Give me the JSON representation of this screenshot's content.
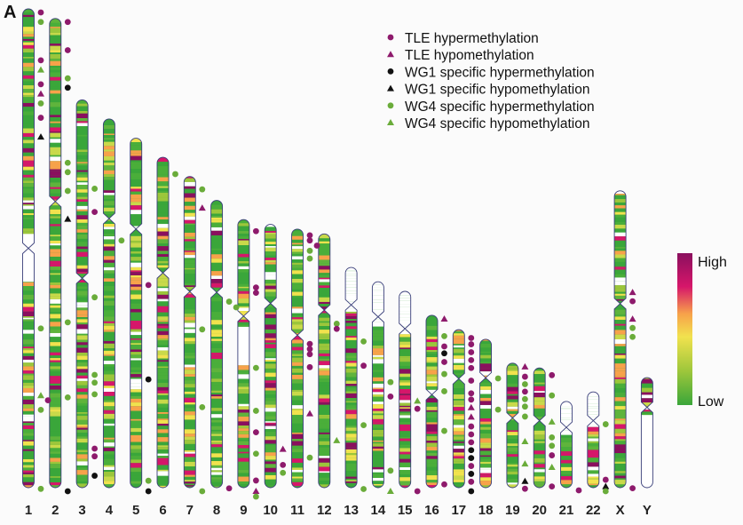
{
  "panel_label": "A",
  "legend": [
    {
      "key": "tle_hyper",
      "label": "TLE hypermethylation",
      "shape": "circle",
      "color": "#8e1a6c"
    },
    {
      "key": "tle_hypo",
      "label": "TLE hypomethylation",
      "shape": "triangle",
      "color": "#8e1a6c"
    },
    {
      "key": "wg1_hyper",
      "label": "WG1 specific hypermethylation",
      "shape": "circle",
      "color": "#111111"
    },
    {
      "key": "wg1_hypo",
      "label": "WG1 specific hypomethylation",
      "shape": "triangle",
      "color": "#111111"
    },
    {
      "key": "wg4_hyper",
      "label": "WG4 specific hypermethylation",
      "shape": "circle",
      "color": "#6aac3a"
    },
    {
      "key": "wg4_hypo",
      "label": "WG4 specific hypomethylation",
      "shape": "triangle",
      "color": "#6aac3a"
    }
  ],
  "color_scale": {
    "high_label": "High",
    "low_label": "Low",
    "stops": [
      "#8a0f5e",
      "#d6166a",
      "#f7a24a",
      "#f1e24e",
      "#9cc63b",
      "#3aa63a"
    ]
  },
  "chart_data": {
    "type": "ideogram",
    "title": "",
    "chromosomes": [
      {
        "label": "1",
        "length": 1.0,
        "centromere": 0.5
      },
      {
        "label": "2",
        "length": 0.98,
        "centromere": 0.39
      },
      {
        "label": "3",
        "length": 0.81,
        "centromere": 0.46
      },
      {
        "label": "4",
        "length": 0.77,
        "centromere": 0.27
      },
      {
        "label": "5",
        "length": 0.73,
        "centromere": 0.26
      },
      {
        "label": "6",
        "length": 0.69,
        "centromere": 0.35
      },
      {
        "label": "7",
        "length": 0.65,
        "centromere": 0.37
      },
      {
        "label": "8",
        "length": 0.6,
        "centromere": 0.32
      },
      {
        "label": "9",
        "length": 0.56,
        "centromere": 0.36
      },
      {
        "label": "10",
        "length": 0.55,
        "centromere": 0.3
      },
      {
        "label": "11",
        "length": 0.54,
        "centromere": 0.41
      },
      {
        "label": "12",
        "length": 0.53,
        "centromere": 0.3
      },
      {
        "label": "13",
        "length": 0.46,
        "centromere": 0.17
      },
      {
        "label": "14",
        "length": 0.43,
        "centromere": 0.17
      },
      {
        "label": "15",
        "length": 0.41,
        "centromere": 0.19
      },
      {
        "label": "16",
        "length": 0.36,
        "centromere": 0.46
      },
      {
        "label": "17",
        "length": 0.33,
        "centromere": 0.31
      },
      {
        "label": "18",
        "length": 0.31,
        "centromere": 0.26
      },
      {
        "label": "19",
        "length": 0.26,
        "centromere": 0.44
      },
      {
        "label": "20",
        "length": 0.25,
        "centromere": 0.44
      },
      {
        "label": "21",
        "length": 0.18,
        "centromere": 0.3
      },
      {
        "label": "22",
        "length": 0.2,
        "centromere": 0.3
      },
      {
        "label": "X",
        "length": 0.62,
        "centromere": 0.38
      },
      {
        "label": "Y",
        "length": 0.23,
        "centromere": 0.27
      }
    ],
    "marks": [
      {
        "chr": "1",
        "type": "tle_hyper",
        "pos": 0.0
      },
      {
        "chr": "1",
        "type": "wg4_hyper",
        "pos": 0.02
      },
      {
        "chr": "1",
        "type": "tle_hyper",
        "pos": 0.1
      },
      {
        "chr": "1",
        "type": "wg4_hypo",
        "pos": 0.12
      },
      {
        "chr": "1",
        "type": "tle_hyper",
        "pos": 0.15
      },
      {
        "chr": "1",
        "type": "tle_hypo",
        "pos": 0.17
      },
      {
        "chr": "1",
        "type": "wg4_hyper",
        "pos": 0.19
      },
      {
        "chr": "1",
        "type": "tle_hyper",
        "pos": 0.22
      },
      {
        "chr": "1",
        "type": "wg1_hypo",
        "pos": 0.26
      },
      {
        "chr": "1",
        "type": "wg4_hyper",
        "pos": 0.66
      },
      {
        "chr": "1",
        "type": "wg4_hypo",
        "pos": 0.8
      },
      {
        "chr": "1",
        "type": "tle_hyper",
        "pos": 0.81
      },
      {
        "chr": "1",
        "type": "wg4_hyper",
        "pos": 0.83
      },
      {
        "chr": "1",
        "type": "wg4_hyper",
        "pos": 0.995
      },
      {
        "chr": "2",
        "type": "tle_hyper",
        "pos": 0.0
      },
      {
        "chr": "2",
        "type": "tle_hyper",
        "pos": 0.06
      },
      {
        "chr": "2",
        "type": "wg4_hyper",
        "pos": 0.12
      },
      {
        "chr": "2",
        "type": "wg1_hyper",
        "pos": 0.14
      },
      {
        "chr": "2",
        "type": "wg4_hyper",
        "pos": 0.3
      },
      {
        "chr": "2",
        "type": "wg4_hyper",
        "pos": 0.32
      },
      {
        "chr": "2",
        "type": "wg4_hyper",
        "pos": 0.36
      },
      {
        "chr": "2",
        "type": "wg1_hypo",
        "pos": 0.42
      },
      {
        "chr": "2",
        "type": "wg4_hyper",
        "pos": 0.64
      },
      {
        "chr": "2",
        "type": "wg4_hyper",
        "pos": 0.8
      },
      {
        "chr": "2",
        "type": "wg1_hyper",
        "pos": 1.0
      },
      {
        "chr": "3",
        "type": "wg4_hyper",
        "pos": 0.22
      },
      {
        "chr": "3",
        "type": "tle_hyper",
        "pos": 0.28
      },
      {
        "chr": "3",
        "type": "wg4_hyper",
        "pos": 0.5
      },
      {
        "chr": "3",
        "type": "wg4_hyper",
        "pos": 0.7
      },
      {
        "chr": "3",
        "type": "wg4_hyper",
        "pos": 0.72
      },
      {
        "chr": "3",
        "type": "wg4_hyper",
        "pos": 0.75
      },
      {
        "chr": "3",
        "type": "tle_hyper",
        "pos": 0.89
      },
      {
        "chr": "3",
        "type": "tle_hyper",
        "pos": 0.91
      },
      {
        "chr": "3",
        "type": "wg1_hyper",
        "pos": 0.96
      },
      {
        "chr": "4",
        "type": "wg4_hyper",
        "pos": 0.32
      },
      {
        "chr": "5",
        "type": "tle_hyper",
        "pos": 0.41
      },
      {
        "chr": "5",
        "type": "wg1_hyper",
        "pos": 0.68
      },
      {
        "chr": "5",
        "type": "wg4_hyper",
        "pos": 0.97
      },
      {
        "chr": "5",
        "type": "wg1_hyper",
        "pos": 1.0
      },
      {
        "chr": "6",
        "type": "wg4_hyper",
        "pos": 0.04
      },
      {
        "chr": "7",
        "type": "wg4_hyper",
        "pos": 0.03
      },
      {
        "chr": "7",
        "type": "tle_hypo",
        "pos": 0.09
      },
      {
        "chr": "7",
        "type": "wg4_hyper",
        "pos": 0.48
      },
      {
        "chr": "7",
        "type": "wg4_hyper",
        "pos": 0.73
      },
      {
        "chr": "7",
        "type": "wg4_hyper",
        "pos": 1.0
      },
      {
        "chr": "8",
        "type": "wg4_hyper",
        "pos": 0.34
      },
      {
        "chr": "8",
        "type": "wg4_hyper",
        "pos": 0.36
      },
      {
        "chr": "8",
        "type": "tle_hyper",
        "pos": 0.99
      },
      {
        "chr": "9",
        "type": "tle_hyper",
        "pos": 0.03
      },
      {
        "chr": "9",
        "type": "tle_hyper",
        "pos": 0.24
      },
      {
        "chr": "9",
        "type": "tle_hyper",
        "pos": 0.26
      },
      {
        "chr": "9",
        "type": "wg4_hyper",
        "pos": 0.54
      },
      {
        "chr": "9",
        "type": "wg4_hyper",
        "pos": 0.7
      },
      {
        "chr": "9",
        "type": "tle_hyper",
        "pos": 0.78
      },
      {
        "chr": "9",
        "type": "wg4_hyper",
        "pos": 0.86
      },
      {
        "chr": "9",
        "type": "tle_hyper",
        "pos": 0.96
      },
      {
        "chr": "9",
        "type": "tle_hypo",
        "pos": 1.0
      },
      {
        "chr": "9",
        "type": "wg4_hyper",
        "pos": 1.02
      },
      {
        "chr": "10",
        "type": "tle_hypo",
        "pos": 0.84
      },
      {
        "chr": "10",
        "type": "tle_hyper",
        "pos": 0.9
      },
      {
        "chr": "10",
        "type": "wg4_hyper",
        "pos": 0.93
      },
      {
        "chr": "11",
        "type": "tle_hyper",
        "pos": 0.01
      },
      {
        "chr": "11",
        "type": "tle_hyper",
        "pos": 0.03
      },
      {
        "chr": "11",
        "type": "tle_hyper",
        "pos": 0.05
      },
      {
        "chr": "11",
        "type": "wg4_hyper",
        "pos": 0.07
      },
      {
        "chr": "11",
        "type": "wg4_hyper",
        "pos": 0.1
      },
      {
        "chr": "11",
        "type": "tle_hyper",
        "pos": 0.43
      },
      {
        "chr": "11",
        "type": "tle_hyper",
        "pos": 0.45
      },
      {
        "chr": "11",
        "type": "tle_hyper",
        "pos": 0.47
      },
      {
        "chr": "11",
        "type": "tle_hyper",
        "pos": 0.52
      },
      {
        "chr": "11",
        "type": "tle_hypo",
        "pos": 0.7
      },
      {
        "chr": "11",
        "type": "wg4_hyper",
        "pos": 0.87
      },
      {
        "chr": "12",
        "type": "wg4_hypo",
        "pos": 0.8
      },
      {
        "chr": "12",
        "type": "wg4_hyper",
        "pos": 0.34
      },
      {
        "chr": "12",
        "type": "tle_hyper",
        "pos": 0.36
      },
      {
        "chr": "13",
        "type": "wg4_hyper",
        "pos": 0.32
      },
      {
        "chr": "13",
        "type": "tle_hyper",
        "pos": 0.43
      },
      {
        "chr": "13",
        "type": "wg4_hyper",
        "pos": 0.7
      },
      {
        "chr": "13",
        "type": "wg4_hyper",
        "pos": 0.99
      },
      {
        "chr": "14",
        "type": "wg4_hyper",
        "pos": 0.47
      },
      {
        "chr": "14",
        "type": "tle_hyper",
        "pos": 0.54
      },
      {
        "chr": "14",
        "type": "wg4_hyper",
        "pos": 0.9
      },
      {
        "chr": "14",
        "type": "wg4_hypo",
        "pos": 1.0
      },
      {
        "chr": "15",
        "type": "wg4_hypo",
        "pos": 0.54
      },
      {
        "chr": "15",
        "type": "tle_hyper",
        "pos": 0.58
      },
      {
        "chr": "15",
        "type": "tle_hyper",
        "pos": 1.0
      },
      {
        "chr": "16",
        "type": "tle_hypo",
        "pos": 0.0
      },
      {
        "chr": "16",
        "type": "wg4_hyper",
        "pos": 0.1
      },
      {
        "chr": "16",
        "type": "tle_hyper",
        "pos": 0.16
      },
      {
        "chr": "16",
        "type": "wg1_hyper",
        "pos": 0.2
      },
      {
        "chr": "16",
        "type": "tle_hyper",
        "pos": 0.25
      },
      {
        "chr": "16",
        "type": "wg4_hyper",
        "pos": 0.32
      },
      {
        "chr": "16",
        "type": "wg4_hyper",
        "pos": 0.42
      },
      {
        "chr": "16",
        "type": "wg4_hyper",
        "pos": 0.65
      },
      {
        "chr": "16",
        "type": "tle_hyper",
        "pos": 0.96
      },
      {
        "chr": "17",
        "type": "tle_hyper",
        "pos": 0.03
      },
      {
        "chr": "17",
        "type": "tle_hyper",
        "pos": 0.07
      },
      {
        "chr": "17",
        "type": "tle_hyper",
        "pos": 0.12
      },
      {
        "chr": "17",
        "type": "tle_hyper",
        "pos": 0.17
      },
      {
        "chr": "17",
        "type": "tle_hyper",
        "pos": 0.22
      },
      {
        "chr": "17",
        "type": "tle_hyper",
        "pos": 0.3
      },
      {
        "chr": "17",
        "type": "tle_hyper",
        "pos": 0.38
      },
      {
        "chr": "17",
        "type": "tle_hyper",
        "pos": 0.42
      },
      {
        "chr": "17",
        "type": "tle_hypo",
        "pos": 0.47
      },
      {
        "chr": "17",
        "type": "tle_hypo",
        "pos": 0.53
      },
      {
        "chr": "17",
        "type": "tle_hyper",
        "pos": 0.59
      },
      {
        "chr": "17",
        "type": "tle_hyper",
        "pos": 0.64
      },
      {
        "chr": "17",
        "type": "tle_hyper",
        "pos": 0.69
      },
      {
        "chr": "17",
        "type": "wg1_hyper",
        "pos": 0.74
      },
      {
        "chr": "17",
        "type": "wg1_hyper",
        "pos": 0.79
      },
      {
        "chr": "17",
        "type": "tle_hyper",
        "pos": 0.84
      },
      {
        "chr": "17",
        "type": "wg1_hyper",
        "pos": 0.89
      },
      {
        "chr": "17",
        "type": "tle_hyper",
        "pos": 0.94
      },
      {
        "chr": "17",
        "type": "wg1_hyper",
        "pos": 1.0
      },
      {
        "chr": "18",
        "type": "wg4_hyper",
        "pos": 0.24
      },
      {
        "chr": "18",
        "type": "wg4_hyper",
        "pos": 0.45
      },
      {
        "chr": "19",
        "type": "tle_hypo",
        "pos": 0.0
      },
      {
        "chr": "19",
        "type": "tle_hyper",
        "pos": 0.08
      },
      {
        "chr": "19",
        "type": "wg4_hyper",
        "pos": 0.14
      },
      {
        "chr": "19",
        "type": "tle_hyper",
        "pos": 0.2
      },
      {
        "chr": "19",
        "type": "wg4_hyper",
        "pos": 0.26
      },
      {
        "chr": "19",
        "type": "wg4_hyper",
        "pos": 0.32
      },
      {
        "chr": "19",
        "type": "wg4_hyper",
        "pos": 0.4
      },
      {
        "chr": "19",
        "type": "wg4_hypo",
        "pos": 0.6
      },
      {
        "chr": "19",
        "type": "wg4_hypo",
        "pos": 0.78
      },
      {
        "chr": "19",
        "type": "wg1_hypo",
        "pos": 0.92
      },
      {
        "chr": "19",
        "type": "tle_hyper",
        "pos": 0.98
      },
      {
        "chr": "20",
        "type": "tle_hyper",
        "pos": 0.03
      },
      {
        "chr": "20",
        "type": "wg4_hyper",
        "pos": 0.2
      },
      {
        "chr": "20",
        "type": "wg4_hypo",
        "pos": 0.42
      },
      {
        "chr": "20",
        "type": "wg4_hyper",
        "pos": 0.55
      },
      {
        "chr": "20",
        "type": "wg4_hyper",
        "pos": 0.62
      },
      {
        "chr": "20",
        "type": "tle_hyper",
        "pos": 0.7
      },
      {
        "chr": "20",
        "type": "wg4_hypo",
        "pos": 0.8
      },
      {
        "chr": "20",
        "type": "tle_hyper",
        "pos": 0.96
      },
      {
        "chr": "21",
        "type": "tle_hyper",
        "pos": 0.99
      },
      {
        "chr": "22",
        "type": "wg4_hyper",
        "pos": 0.3
      },
      {
        "chr": "22",
        "type": "tle_hyper",
        "pos": 0.88
      },
      {
        "chr": "22",
        "type": "wg1_hypo",
        "pos": 0.95
      },
      {
        "chr": "22",
        "type": "wg4_hyper",
        "pos": 1.0
      },
      {
        "chr": "X",
        "type": "tle_hypo",
        "pos": 0.33
      },
      {
        "chr": "X",
        "type": "tle_hyper",
        "pos": 0.36
      },
      {
        "chr": "X",
        "type": "tle_hypo",
        "pos": 0.42
      },
      {
        "chr": "X",
        "type": "wg4_hyper",
        "pos": 0.45
      },
      {
        "chr": "X",
        "type": "wg4_hyper",
        "pos": 0.48
      },
      {
        "chr": "X",
        "type": "tle_hyper",
        "pos": 0.99
      }
    ]
  }
}
